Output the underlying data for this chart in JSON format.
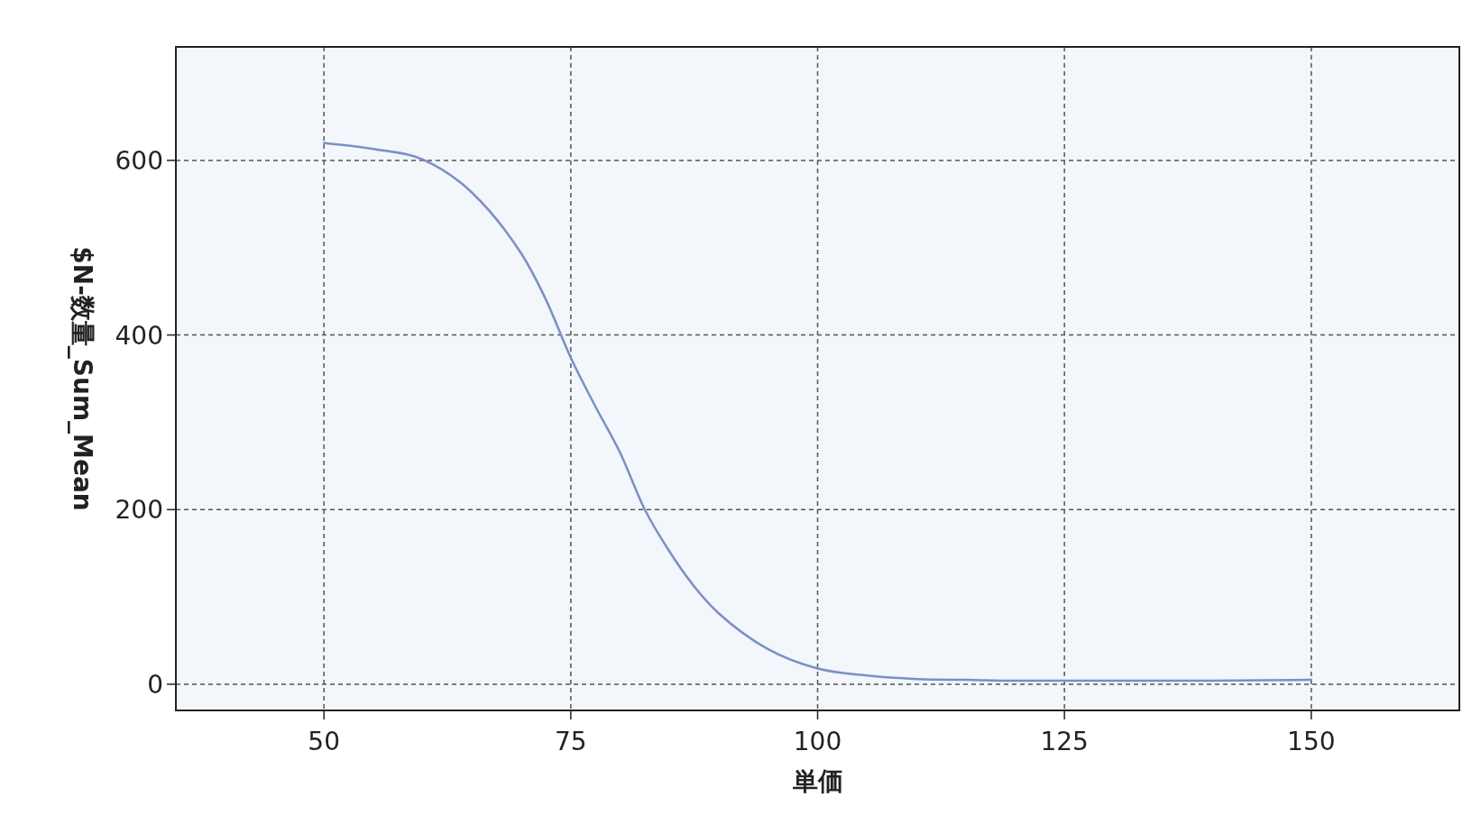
{
  "chart_data": {
    "type": "line",
    "xlabel": "単価",
    "ylabel": "$N-数量_Sum_Mean",
    "x": [
      50,
      55,
      60,
      65,
      70,
      72.5,
      75,
      77.5,
      80,
      82.5,
      85,
      87.5,
      90,
      95,
      100,
      105,
      110,
      115,
      120,
      130,
      140,
      150
    ],
    "series": [
      {
        "color": "#7b8fc7",
        "values": [
          620,
          613,
          601,
          563,
          493,
          440,
          374,
          318,
          265,
          200,
          152,
          112,
          81,
          40,
          18,
          10,
          6,
          5,
          4,
          4,
          4,
          5
        ]
      }
    ],
    "xlim": [
      35,
      165
    ],
    "xticks": [
      50,
      75,
      100,
      125,
      150
    ],
    "ylim": [
      -30,
      730
    ],
    "yticks": [
      0,
      200,
      400,
      600
    ],
    "grid": true,
    "marker": "none",
    "line_style": "solid"
  }
}
